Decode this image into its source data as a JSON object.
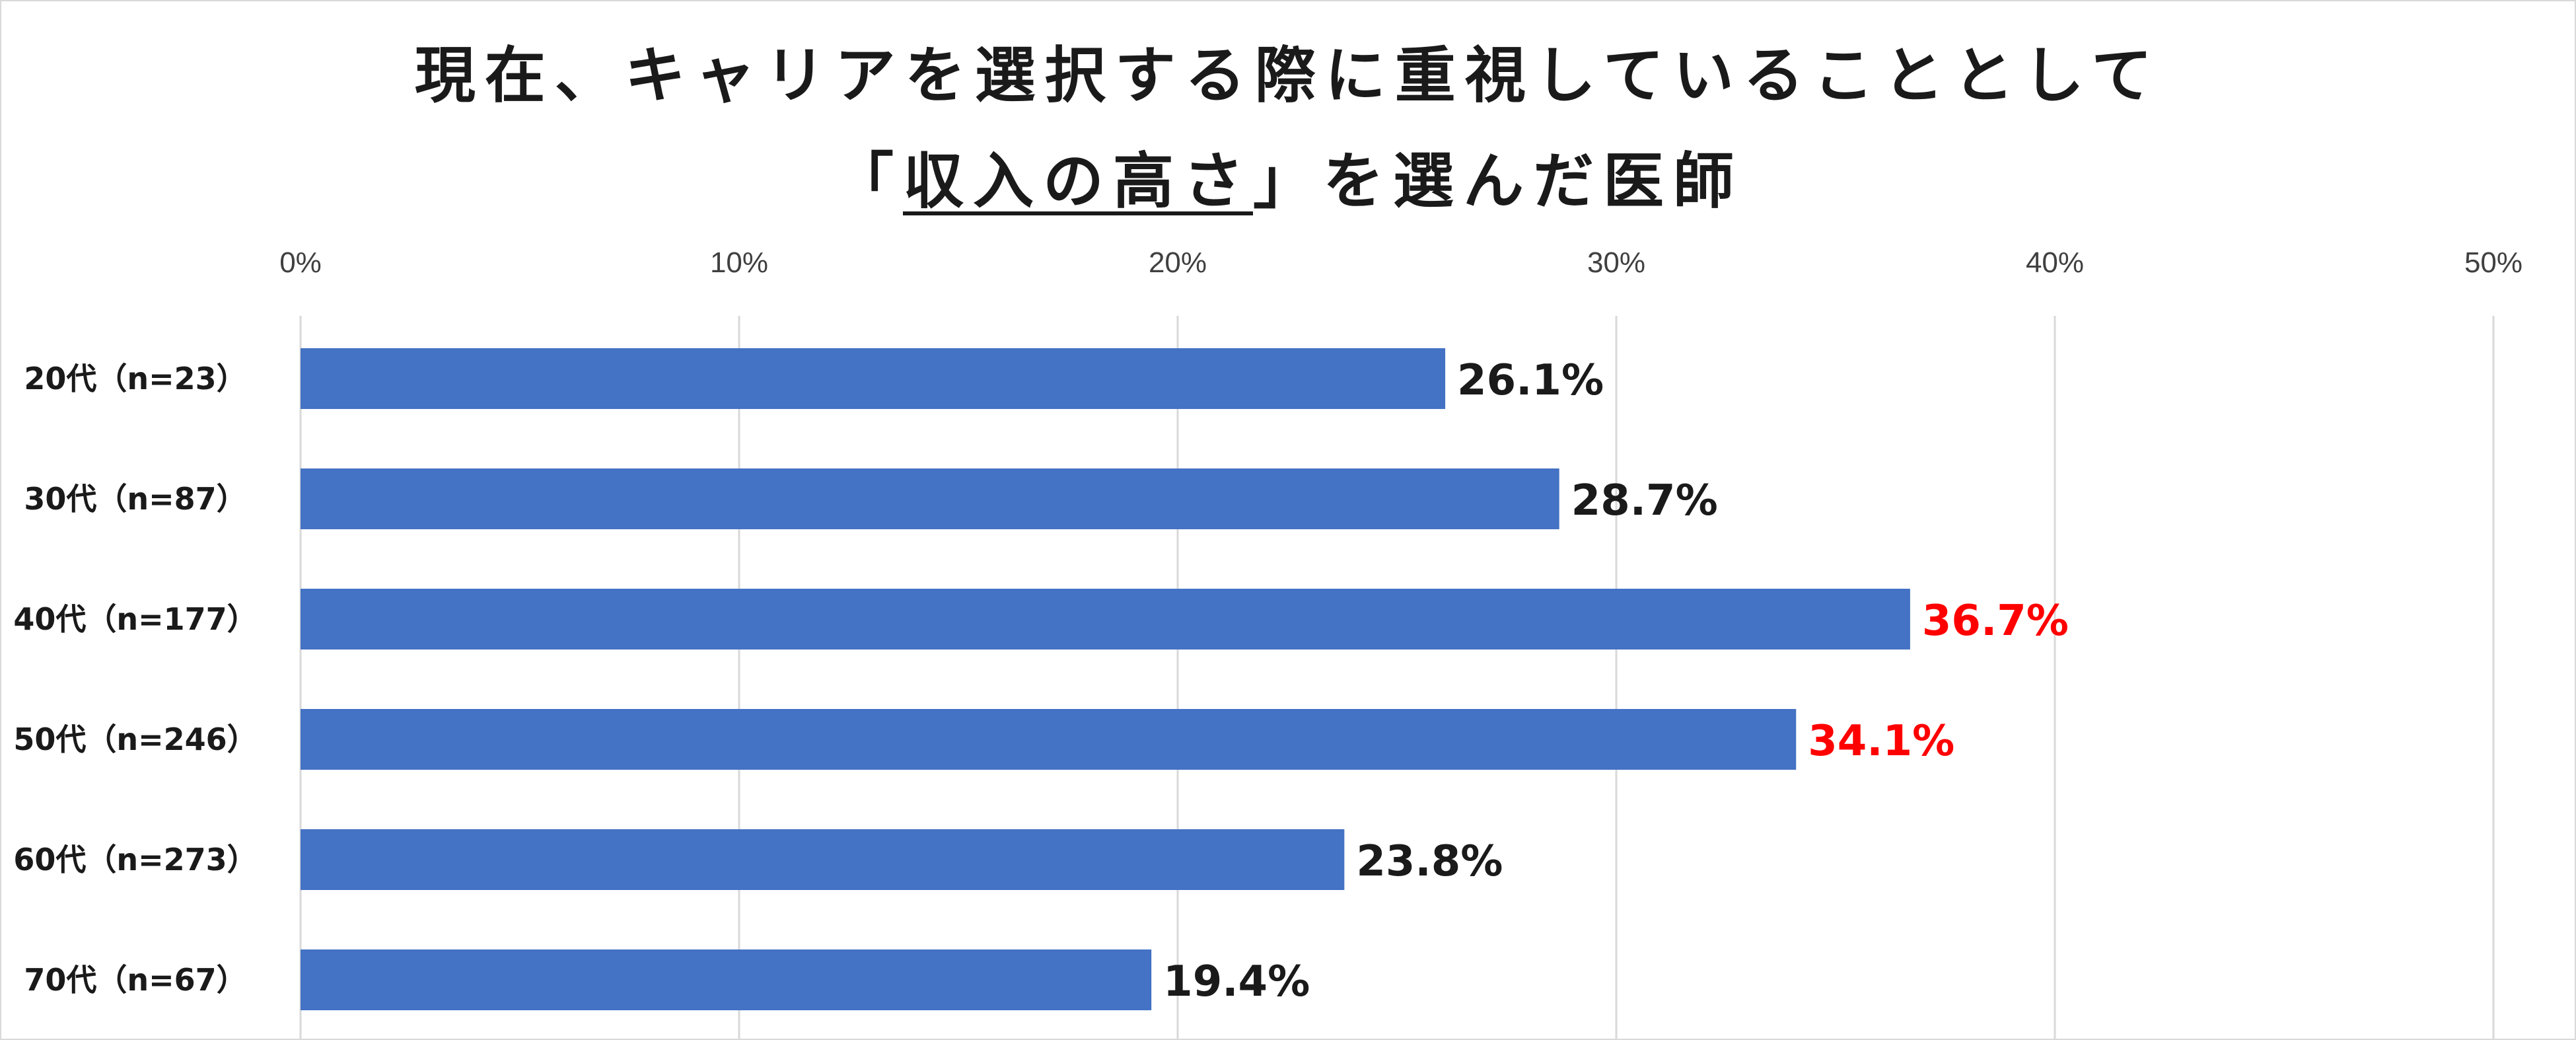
{
  "chart_data": {
    "type": "bar",
    "orientation": "horizontal",
    "title_line1": "現在、キャリアを選択する際に重視していることとして",
    "title_line2_open": "「",
    "title_line2_underlined": "収入の高さ",
    "title_line2_rest": "」を選んだ医師",
    "xlabel": "",
    "ylabel": "",
    "xlim": [
      0,
      50
    ],
    "x_ticks": [
      "0%",
      "10%",
      "20%",
      "30%",
      "40%",
      "50%"
    ],
    "categories": [
      "20代（n=23）",
      "30代（n=87）",
      "40代（n=177）",
      "50代（n=246）",
      "60代（n=273）",
      "70代（n=67）"
    ],
    "values": [
      26.1,
      28.7,
      36.7,
      34.1,
      23.8,
      19.4
    ],
    "value_labels": [
      "26.1%",
      "28.7%",
      "36.7%",
      "34.1%",
      "23.8%",
      "19.4%"
    ],
    "highlighted": [
      false,
      false,
      true,
      true,
      false,
      false
    ],
    "grid": true,
    "legend": "none"
  },
  "colors": {
    "bar": "#4472c4",
    "label_default": "#1a1a1a",
    "label_highlight": "#ff0000",
    "grid": "#d9d9d9"
  }
}
